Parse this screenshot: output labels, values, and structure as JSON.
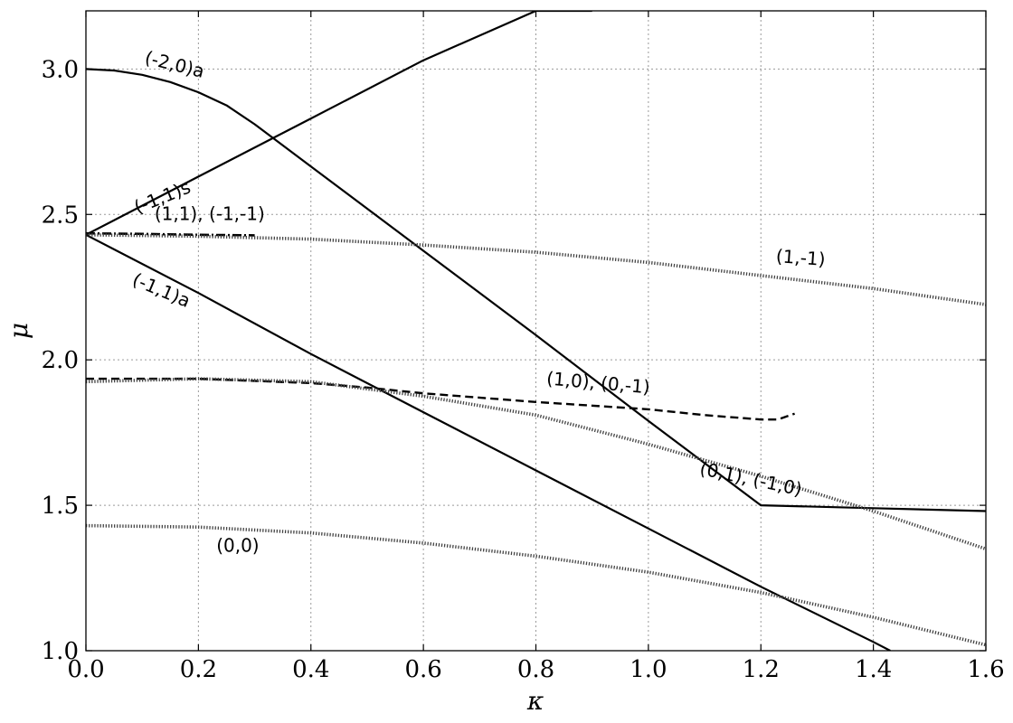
{
  "chart_data": {
    "type": "line",
    "xlabel": "κ",
    "ylabel": "μ",
    "xlim": [
      0.0,
      1.6
    ],
    "ylim": [
      1.0,
      3.2
    ],
    "grid": true,
    "xticks": [
      "0.0",
      "0.2",
      "0.4",
      "0.6",
      "0.8",
      "1.0",
      "1.2",
      "1.4",
      "1.6"
    ],
    "yticks": [
      "1.0",
      "1.5",
      "2.0",
      "2.5",
      "3.0"
    ],
    "xtick_values": [
      0.0,
      0.2,
      0.4,
      0.6,
      0.8,
      1.0,
      1.2,
      1.4,
      1.6
    ],
    "ytick_values": [
      1.0,
      1.5,
      2.0,
      2.5,
      3.0
    ],
    "series": [
      {
        "key": "m20a",
        "style": "solid",
        "x": [
          0.0,
          0.05,
          0.1,
          0.15,
          0.2,
          0.25,
          0.3,
          0.4,
          0.6,
          0.8,
          1.0,
          1.2,
          1.4,
          1.6
        ],
        "y": [
          3.0,
          2.995,
          2.98,
          2.955,
          2.92,
          2.875,
          2.81,
          2.665,
          2.375,
          2.085,
          1.79,
          1.5,
          1.49,
          1.48
        ]
      },
      {
        "key": "m11s",
        "style": "solid",
        "x": [
          0.0,
          0.2,
          0.4,
          0.6,
          0.8,
          0.9
        ],
        "y": [
          2.43,
          2.63,
          2.83,
          3.03,
          3.2,
          3.2
        ]
      },
      {
        "key": "m11a",
        "style": "solid",
        "x": [
          0.0,
          0.2,
          0.4,
          0.6,
          0.8,
          1.0,
          1.2,
          1.4,
          1.43
        ],
        "y": [
          2.43,
          2.23,
          2.02,
          1.82,
          1.62,
          1.42,
          1.22,
          1.03,
          1.0
        ]
      },
      {
        "key": "p11",
        "style": "dashdot",
        "x": [
          0.0,
          0.1,
          0.2,
          0.3
        ],
        "y": [
          2.435,
          2.433,
          2.43,
          2.428
        ]
      },
      {
        "key": "p1m1",
        "style": "dotted",
        "x": [
          0.0,
          0.2,
          0.4,
          0.6,
          0.8,
          1.0,
          1.2,
          1.4,
          1.6
        ],
        "y": [
          2.43,
          2.425,
          2.415,
          2.395,
          2.37,
          2.335,
          2.29,
          2.245,
          2.19
        ]
      },
      {
        "key": "p10",
        "style": "dashed",
        "x": [
          0.0,
          0.2,
          0.4,
          0.5,
          0.6,
          0.8,
          1.0,
          1.1,
          1.2,
          1.23,
          1.26
        ],
        "y": [
          1.935,
          1.935,
          1.92,
          1.905,
          1.885,
          1.855,
          1.83,
          1.81,
          1.795,
          1.795,
          1.815
        ]
      },
      {
        "key": "p01",
        "style": "dotted",
        "x": [
          0.0,
          0.2,
          0.4,
          0.6,
          0.8,
          1.0,
          1.2,
          1.4,
          1.6
        ],
        "y": [
          1.925,
          1.935,
          1.925,
          1.875,
          1.81,
          1.71,
          1.6,
          1.48,
          1.35
        ]
      },
      {
        "key": "p00",
        "style": "dotted",
        "x": [
          0.0,
          0.2,
          0.4,
          0.6,
          0.8,
          1.0,
          1.2,
          1.4,
          1.6
        ],
        "y": [
          1.43,
          1.425,
          1.405,
          1.37,
          1.325,
          1.27,
          1.2,
          1.115,
          1.02
        ]
      }
    ],
    "annotations": [
      {
        "key": "m20a",
        "text": "(-2,0)a",
        "x": 0.155,
        "y": 2.995,
        "angle": 14
      },
      {
        "key": "m11s",
        "text": "(-1,1)s",
        "x": 0.14,
        "y": 2.54,
        "angle": -22
      },
      {
        "key": "p11",
        "text": "(1,1), (-1,-1)",
        "x": 0.22,
        "y": 2.48,
        "angle": 0
      },
      {
        "key": "p1m1",
        "text": "(1,-1)",
        "x": 1.27,
        "y": 2.33,
        "angle": 4
      },
      {
        "key": "m11a",
        "text": "(-1,1)a",
        "x": 0.13,
        "y": 2.22,
        "angle": 23
      },
      {
        "key": "p10",
        "text": "(1,0), (0,-1)",
        "x": 0.91,
        "y": 1.9,
        "angle": 5
      },
      {
        "key": "p01",
        "text": "(0,1), (-1,0)",
        "x": 1.18,
        "y": 1.57,
        "angle": 12
      },
      {
        "key": "p00",
        "text": "(0,0)",
        "x": 0.27,
        "y": 1.34,
        "angle": 0
      }
    ]
  }
}
